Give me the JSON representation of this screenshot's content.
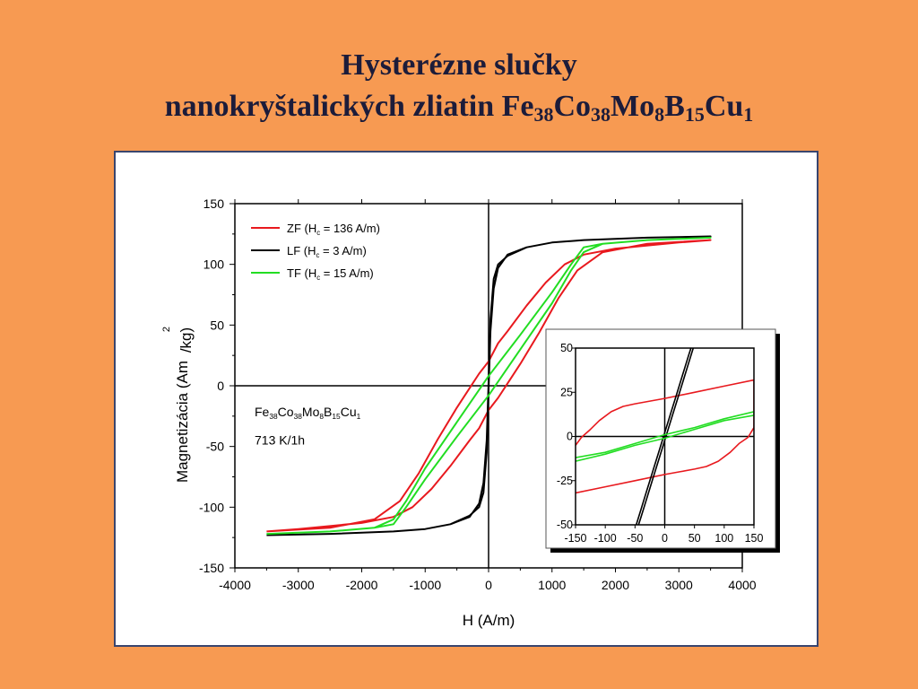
{
  "slide": {
    "title_line1": "Hysterézne slučky",
    "title_line2_prefix": "nanokryštalických zliatin ",
    "formula": [
      {
        "el": "Fe",
        "n": "38"
      },
      {
        "el": "Co",
        "n": "38"
      },
      {
        "el": "Mo",
        "n": "8"
      },
      {
        "el": "B",
        "n": "15"
      },
      {
        "el": "Cu",
        "n": "1"
      }
    ]
  },
  "chart_data": [
    {
      "type": "line",
      "xlabel": "H (A/m)",
      "ylabel": "Magnetizácia (Am",
      "ylabel_sup": "2",
      "ylabel_tail": "/kg)",
      "xlim": [
        -4000,
        4000
      ],
      "ylim": [
        -150,
        150
      ],
      "xticks": [
        -4000,
        -3000,
        -2000,
        -1000,
        0,
        1000,
        2000,
        3000,
        4000
      ],
      "yticks": [
        -150,
        -100,
        -50,
        0,
        50,
        100,
        150
      ],
      "legend_position": "top-left",
      "annotation": {
        "formula": [
          {
            "el": "Fe",
            "n": "38"
          },
          {
            "el": "Co",
            "n": "38"
          },
          {
            "el": "Mo",
            "n": "8"
          },
          {
            "el": "B",
            "n": "15"
          },
          {
            "el": "Cu",
            "n": "1"
          }
        ],
        "treatment": "713 K/1h"
      },
      "series": [
        {
          "name": "ZF (H",
          "name_sub": "c",
          "name_tail": " = 136 A/m)",
          "color": "#e8191e",
          "x": [
            -3500,
            -3000,
            -2000,
            -1500,
            -1200,
            -900,
            -600,
            -300,
            -150,
            0,
            150,
            300,
            500,
            800,
            1100,
            1400,
            1800,
            2500,
            3500,
            3500,
            3000,
            2000,
            1500,
            1200,
            900,
            600,
            300,
            150,
            0,
            -150,
            -300,
            -500,
            -800,
            -1100,
            -1400,
            -1800,
            -2500,
            -3500
          ],
          "y": [
            -120,
            -118,
            -113,
            -108,
            -100,
            -85,
            -66,
            -45,
            -35,
            -20,
            -10,
            2,
            18,
            44,
            72,
            95,
            110,
            117,
            120,
            120,
            118,
            113,
            108,
            100,
            85,
            66,
            45,
            35,
            20,
            10,
            -2,
            -18,
            -44,
            -72,
            -95,
            -110,
            -117,
            -120
          ]
        },
        {
          "name": "LF (H",
          "name_sub": "c",
          "name_tail": " = 3 A/m)",
          "color": "#000000",
          "x": [
            -3500,
            -2500,
            -1500,
            -1000,
            -600,
            -300,
            -150,
            -80,
            -30,
            0,
            30,
            80,
            150,
            300,
            600,
            1000,
            1500,
            2500,
            3500,
            3500,
            2500,
            1500,
            1000,
            600,
            300,
            150,
            80,
            30,
            0,
            -30,
            -80,
            -150,
            -300,
            -600,
            -1000,
            -1500,
            -2500,
            -3500
          ],
          "y": [
            -123,
            -122,
            -120,
            -118,
            -114,
            -107,
            -100,
            -88,
            -55,
            -3,
            45,
            80,
            97,
            108,
            114,
            118,
            120,
            122,
            123,
            123,
            122,
            120,
            118,
            114,
            107,
            100,
            88,
            55,
            3,
            -45,
            -80,
            -97,
            -108,
            -114,
            -118,
            -120,
            -122,
            -123
          ]
        },
        {
          "name": "TF (H",
          "name_sub": "c",
          "name_tail": " = 15 A/m)",
          "color": "#22dd22",
          "x": [
            -3500,
            -2500,
            -1800,
            -1500,
            -1300,
            -1000,
            -500,
            0,
            500,
            1000,
            1300,
            1500,
            1800,
            2500,
            3500,
            3500,
            2500,
            1800,
            1500,
            1300,
            1000,
            500,
            0,
            -500,
            -1000,
            -1300,
            -1500,
            -1800,
            -2500,
            -3500
          ],
          "y": [
            -122,
            -120,
            -117,
            -114,
            -100,
            -77,
            -42,
            -8,
            30,
            68,
            95,
            110,
            117,
            120,
            122,
            122,
            120,
            117,
            114,
            100,
            77,
            42,
            8,
            -30,
            -68,
            -95,
            -110,
            -117,
            -120,
            -122
          ]
        }
      ]
    },
    {
      "type": "line",
      "inset": true,
      "xlim": [
        -150,
        150
      ],
      "ylim": [
        -50,
        50
      ],
      "xticks": [
        -150,
        -100,
        -50,
        0,
        50,
        100,
        150
      ],
      "yticks": [
        -50,
        -25,
        0,
        25,
        50
      ],
      "series": [
        {
          "name": "ZF",
          "color": "#e8191e",
          "x": [
            -150,
            -140,
            -125,
            -110,
            -90,
            -70,
            -50,
            -25,
            0,
            50,
            100,
            150,
            150,
            140,
            125,
            110,
            90,
            70,
            50,
            25,
            0,
            -50,
            -100,
            -150
          ],
          "y": [
            -5,
            -0.5,
            4,
            9,
            14,
            17,
            18.5,
            20,
            21.5,
            25,
            28.5,
            32,
            5,
            -0.5,
            -4,
            -9,
            -14,
            -17,
            -18.5,
            -20,
            -21.5,
            -25,
            -28.5,
            -32
          ]
        },
        {
          "name": "LF",
          "color": "#000000",
          "x": [
            -48,
            -40,
            -30,
            -20,
            -10,
            0,
            10,
            20,
            30,
            40,
            45,
            50,
            48,
            40,
            30,
            20,
            10,
            0,
            -10,
            -20,
            -30,
            -40,
            -45,
            -50
          ],
          "y": [
            -50,
            -41.3,
            -30.4,
            -19.6,
            -8.7,
            2.2,
            13,
            23.9,
            34.8,
            45.7,
            51,
            51,
            50,
            41.3,
            30.4,
            19.6,
            8.7,
            -2.2,
            -13,
            -23.9,
            -34.8,
            -45.7,
            -51,
            -51
          ]
        },
        {
          "name": "TF",
          "color": "#22dd22",
          "x": [
            -150,
            -100,
            -50,
            0,
            50,
            100,
            150,
            150,
            100,
            50,
            0,
            -50,
            -100,
            -150
          ],
          "y": [
            -14,
            -10,
            -5,
            -1,
            4,
            9,
            12,
            14,
            10,
            5,
            1,
            -4,
            -9,
            -12
          ]
        }
      ]
    }
  ]
}
